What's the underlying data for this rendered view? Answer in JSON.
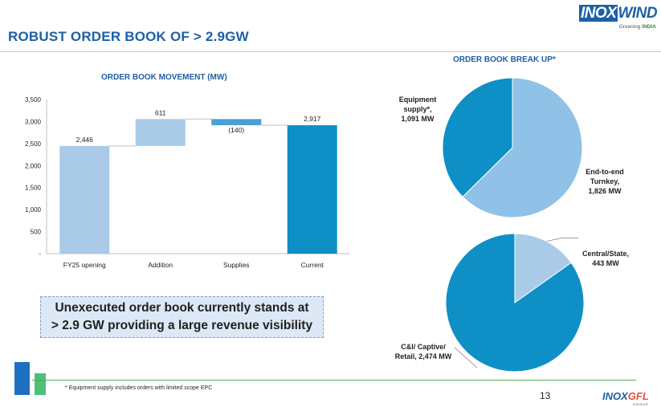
{
  "header": {
    "title": "ROBUST ORDER BOOK OF > 2.9GW",
    "logo": {
      "left": "INOX",
      "right": "WIND",
      "tagline_prefix": "Greening",
      "tagline_strong": "INDIA"
    }
  },
  "colors": {
    "accent": "#1e5fa6",
    "bar_light": "#a9cbe8",
    "bar_mid": "#4a9fd6",
    "bar_dark": "#0e8fc6",
    "pie_light": "#8fc2e6",
    "pie_dark": "#0e8fc6",
    "green": "#4caf50"
  },
  "chart_data": [
    {
      "type": "bar",
      "subtype": "waterfall",
      "title": "ORDER BOOK MOVEMENT (MW)",
      "categories": [
        "FY25 opening",
        "Addition",
        "Supplies",
        "Current"
      ],
      "values": [
        2446,
        611,
        -140,
        2917
      ],
      "labels": [
        "2,446",
        "611",
        "(140)",
        "2,917"
      ],
      "ylim": [
        0,
        3500
      ],
      "yticks": [
        "-",
        "500",
        "1,000",
        "1,500",
        "2,000",
        "2,500",
        "3,000",
        "3,500"
      ],
      "grid": false
    },
    {
      "type": "pie",
      "title": "ORDER BOOK BREAK UP*",
      "slices": [
        {
          "label": "End-to-end Turnkey, 1,826 MW",
          "value": 1826,
          "lines": [
            "End-to-end",
            "Turnkey,",
            "1,826 MW"
          ]
        },
        {
          "label": "Equipment supply*, 1,091 MW",
          "value": 1091,
          "lines": [
            "Equipment",
            "supply*,",
            "1,091 MW"
          ]
        }
      ]
    },
    {
      "type": "pie",
      "slices": [
        {
          "label": "Central/State, 443 MW",
          "value": 443,
          "lines": [
            "Central/State,",
            "443 MW"
          ]
        },
        {
          "label": "C&I/ Captive/ Retail, 2,474 MW",
          "value": 2474,
          "lines": [
            "C&I/ Captive/",
            "Retail, 2,474 MW"
          ]
        }
      ]
    }
  ],
  "callout": {
    "line1": "Unexecuted order book currently stands at",
    "line2": "> 2.9 GW providing a large revenue visibility"
  },
  "footer": {
    "footnote": "* Equipment supply includes orders with limited scope EPC",
    "page_number": "13",
    "logo": {
      "a": "INOX",
      "b": "GFL",
      "sub": "GROUP"
    }
  }
}
